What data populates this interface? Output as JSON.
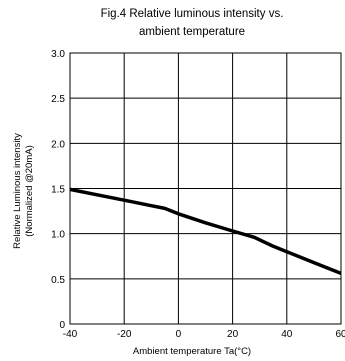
{
  "chart_data": {
    "type": "line",
    "title_lines": [
      "Fig.4 Relative luminous intensity vs.",
      "ambient temperature"
    ],
    "xlabel": "Ambient temperature Ta(°C)",
    "ylabel_lines": [
      "Relative Luminous intensity",
      "(Normalized @20mA)"
    ],
    "xlim": [
      -40,
      60
    ],
    "ylim": [
      0,
      3.0
    ],
    "x_ticks": [
      -40,
      -20,
      0,
      20,
      40,
      60
    ],
    "x_tick_labels": [
      "-40",
      "-20",
      "0",
      "20",
      "40",
      "60"
    ],
    "y_ticks": [
      0,
      0.5,
      1.0,
      1.5,
      2.0,
      2.5,
      3.0
    ],
    "y_tick_labels": [
      "0",
      "0.5",
      "1.0",
      "1.5",
      "2.0",
      "2.5",
      "3.0"
    ],
    "grid": true,
    "series": [
      {
        "x": [
          -40,
          -30,
          -20,
          -10,
          -5,
          0,
          10,
          20,
          28,
          35,
          40,
          50,
          60
        ],
        "y": [
          1.49,
          1.43,
          1.37,
          1.31,
          1.28,
          1.22,
          1.12,
          1.03,
          0.96,
          0.86,
          0.8,
          0.68,
          0.56
        ]
      }
    ],
    "colors": {
      "line": "#000000",
      "grid": "#000000",
      "axis": "#000000"
    }
  }
}
